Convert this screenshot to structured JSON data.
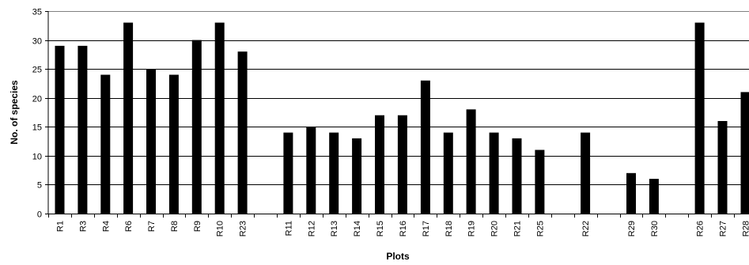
{
  "chart_data": {
    "type": "bar",
    "title": "",
    "xlabel": "Plots",
    "ylabel": "No. of species",
    "ylim": [
      0,
      35
    ],
    "yticks": [
      0,
      5,
      10,
      15,
      20,
      25,
      30,
      35
    ],
    "grid": true,
    "legend": "none",
    "bar_color": "#000000",
    "categories": [
      "R1",
      "R3",
      "R4",
      "R6",
      "R7",
      "R8",
      "R9",
      "R10",
      "R23",
      "",
      "R11",
      "R12",
      "R13",
      "R14",
      "R15",
      "R16",
      "R17",
      "R18",
      "R19",
      "R20",
      "R21",
      "R25",
      "",
      "R22",
      "",
      "R29",
      "R30",
      "",
      "R26",
      "R27",
      "R28"
    ],
    "values": [
      29,
      29,
      24,
      33,
      25,
      24,
      30,
      33,
      28,
      null,
      14,
      15,
      14,
      13,
      17,
      17,
      23,
      14,
      18,
      14,
      13,
      11,
      null,
      14,
      null,
      7,
      6,
      null,
      33,
      16,
      21
    ]
  }
}
